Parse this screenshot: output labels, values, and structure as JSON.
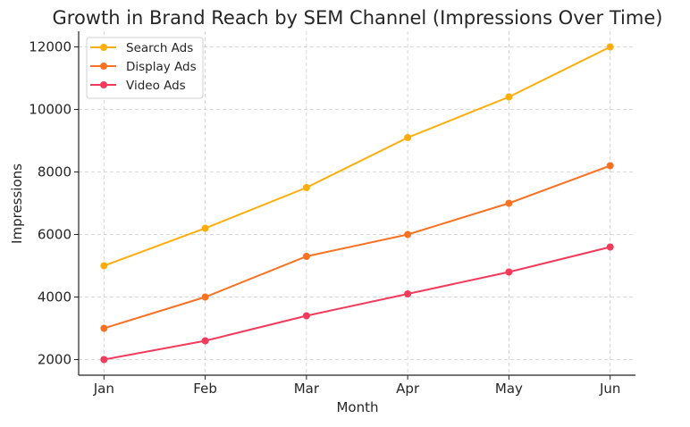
{
  "chart_data": {
    "type": "line",
    "title": "Growth in Brand Reach by SEM Channel (Impressions Over Time)",
    "xlabel": "Month",
    "ylabel": "Impressions",
    "categories": [
      "Jan",
      "Feb",
      "Mar",
      "Apr",
      "May",
      "Jun"
    ],
    "ylim": [
      1500,
      12500
    ],
    "yticks": [
      2000,
      4000,
      6000,
      8000,
      10000,
      12000
    ],
    "grid": true,
    "legend_position": "top-left",
    "series": [
      {
        "name": "Search Ads",
        "color": "#FFAD0A",
        "values": [
          5000,
          6200,
          7500,
          9100,
          10400,
          12000
        ]
      },
      {
        "name": "Display Ads",
        "color": "#F97223",
        "values": [
          3000,
          4000,
          5300,
          6000,
          7000,
          8200
        ]
      },
      {
        "name": "Video Ads",
        "color": "#F23A5B",
        "values": [
          2000,
          2600,
          3400,
          4100,
          4800,
          5600
        ]
      }
    ]
  }
}
